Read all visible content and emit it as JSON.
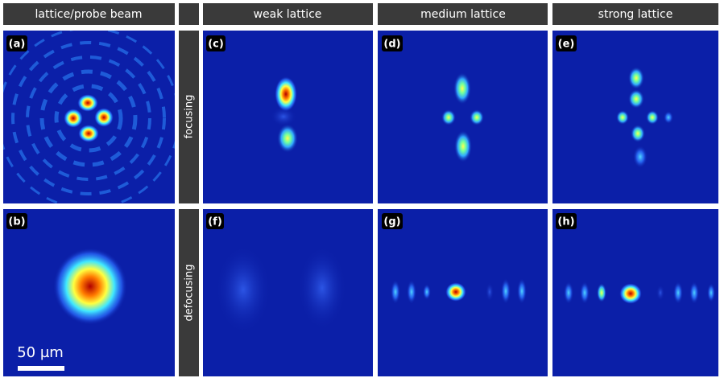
{
  "headers": [
    "lattice/probe beam",
    "weak lattice",
    "medium lattice",
    "strong lattice"
  ],
  "row_labels": [
    "focusing",
    "defocusing"
  ],
  "panels": [
    "(a)",
    "(b)",
    "(c)",
    "(d)",
    "(e)",
    "(f)",
    "(g)",
    "(h)"
  ],
  "scale_bar": "50 µm"
}
